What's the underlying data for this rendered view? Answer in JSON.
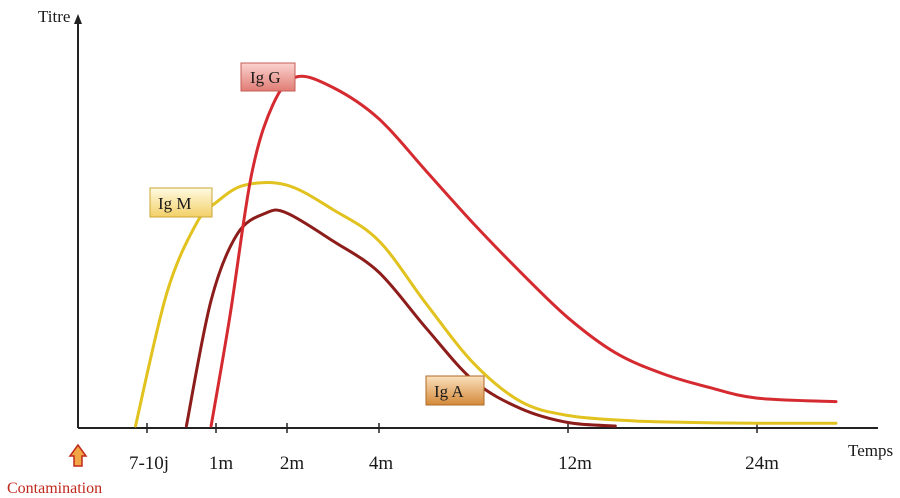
{
  "chart_data": {
    "type": "line",
    "title": "",
    "ylabel": "Titre",
    "xlabel": "Temps",
    "x_ticks": [
      "7-10j",
      "1m",
      "2m",
      "4m",
      "12m",
      "24m"
    ],
    "annotation": "Contamination",
    "grid": false,
    "legend": "inline labels on curves",
    "series": [
      {
        "name": "Ig G",
        "color": "#d42a30",
        "points": [
          [
            0.95,
            0
          ],
          [
            1.2,
            0.32
          ],
          [
            1.5,
            0.72
          ],
          [
            1.8,
            0.92
          ],
          [
            2.2,
            1.0
          ],
          [
            3,
            0.97
          ],
          [
            4,
            0.88
          ],
          [
            6,
            0.73
          ],
          [
            8,
            0.58
          ],
          [
            10,
            0.44
          ],
          [
            12,
            0.31
          ],
          [
            15,
            0.21
          ],
          [
            18,
            0.15
          ],
          [
            21,
            0.11
          ],
          [
            24,
            0.08
          ],
          [
            26,
            0.07
          ]
        ]
      },
      {
        "name": "Ig M",
        "color": "#e1c21e",
        "points": [
          [
            0.25,
            0
          ],
          [
            0.5,
            0.38
          ],
          [
            0.8,
            0.58
          ],
          [
            1,
            0.64
          ],
          [
            1.4,
            0.69
          ],
          [
            2,
            0.69
          ],
          [
            3,
            0.62
          ],
          [
            4,
            0.53
          ],
          [
            6,
            0.35
          ],
          [
            8,
            0.18
          ],
          [
            10,
            0.07
          ],
          [
            12,
            0.03
          ],
          [
            16,
            0.015
          ],
          [
            20,
            0.01
          ],
          [
            24,
            0.008
          ],
          [
            26,
            0.008
          ]
        ]
      },
      {
        "name": "Ig A",
        "color": "#8c1d1a",
        "points": [
          [
            0.7,
            0
          ],
          [
            0.95,
            0.36
          ],
          [
            1.3,
            0.55
          ],
          [
            1.7,
            0.61
          ],
          [
            2,
            0.61
          ],
          [
            3,
            0.53
          ],
          [
            4,
            0.44
          ],
          [
            6,
            0.28
          ],
          [
            8,
            0.13
          ],
          [
            10,
            0.05
          ],
          [
            12,
            0.01
          ],
          [
            15,
            0
          ]
        ]
      }
    ]
  }
}
